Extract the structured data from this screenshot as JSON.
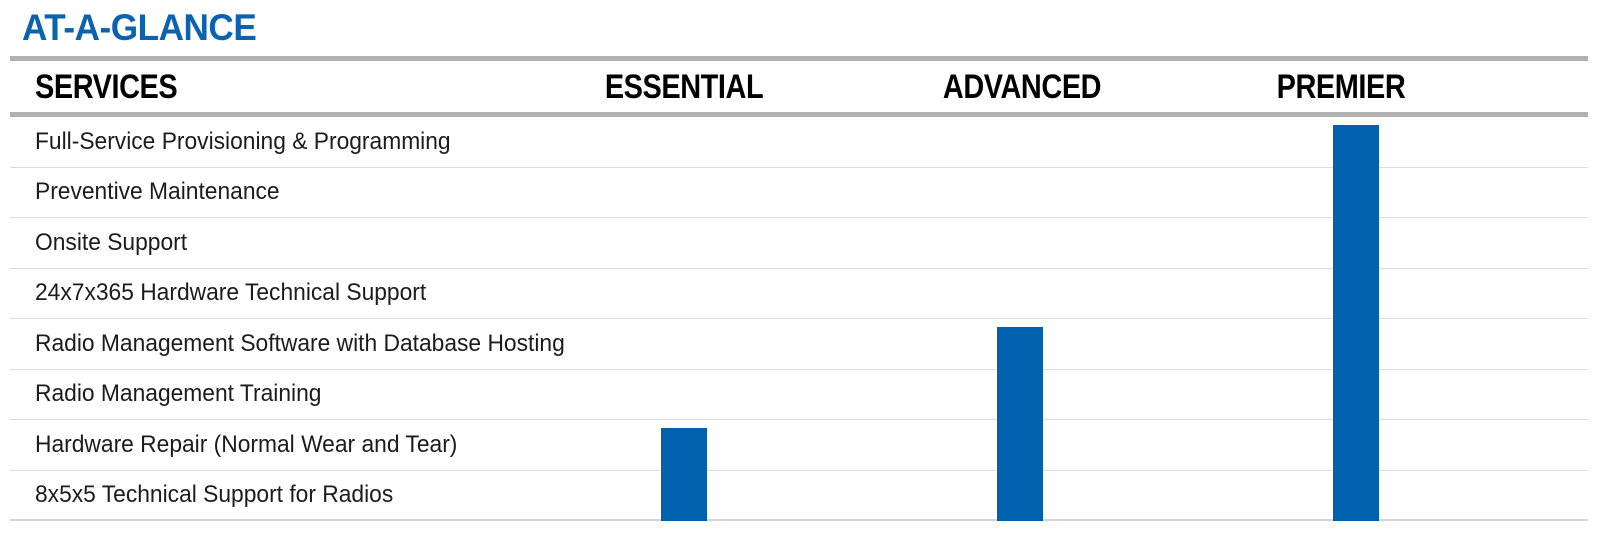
{
  "page": {
    "title": "AT-A-GLANCE"
  },
  "table": {
    "services_header": "SERVICES",
    "columns": [
      {
        "label": "ESSENTIAL",
        "first_included_row": 6
      },
      {
        "label": "ADVANCED",
        "first_included_row": 4
      },
      {
        "label": "PREMIER",
        "first_included_row": 0
      }
    ],
    "rows": [
      "Full-Service Provisioning & Programming",
      "Preventive Maintenance",
      "Onsite Support",
      "24x7x365 Hardware Technical Support",
      "Radio Management Software with Database Hosting",
      "Radio Management Training",
      "Hardware Repair (Normal Wear and Tear)",
      "8x5x5 Technical Support for Radios"
    ]
  },
  "colors": {
    "brand_blue": "#0B63AF",
    "bar_blue": "#0062AE",
    "rule_gray": "#B1B1B1",
    "line_gray": "#DCDCDC",
    "header_text": "#000000",
    "row_text": "#1C1C1C"
  },
  "chart_data": {
    "type": "table",
    "title": "AT-A-GLANCE",
    "row_header": "SERVICES",
    "columns": [
      "ESSENTIAL",
      "ADVANCED",
      "PREMIER"
    ],
    "rows": [
      "Full-Service Provisioning & Programming",
      "Preventive Maintenance",
      "Onsite Support",
      "24x7x365 Hardware Technical Support",
      "Radio Management Software with Database Hosting",
      "Radio Management Training",
      "Hardware Repair (Normal Wear and Tear)",
      "8x5x5 Technical Support for Radios"
    ],
    "coverage": [
      [
        false,
        false,
        true
      ],
      [
        false,
        false,
        true
      ],
      [
        false,
        false,
        true
      ],
      [
        false,
        false,
        true
      ],
      [
        false,
        true,
        true
      ],
      [
        false,
        true,
        true
      ],
      [
        true,
        true,
        true
      ],
      [
        true,
        true,
        true
      ]
    ],
    "legend_note": "Solid blue vertical bar in a tier column spans from the first included service down to the bottom of the table, indicating all services from that row downward are included in the tier.",
    "layout_hints": {
      "grid": "thin light-gray horizontal separators between rows; thick gray rules under title and header row",
      "bar_color": "#0062AE"
    }
  }
}
